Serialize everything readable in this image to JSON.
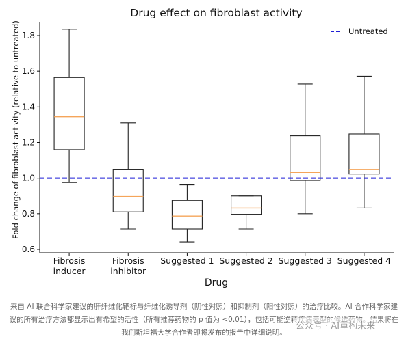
{
  "chart_data": {
    "type": "box",
    "title": "Drug effect on fibroblast activity",
    "xlabel": "Drug",
    "ylabel": "Fold change of fibroblast activity (relative to untreated)",
    "ylim": [
      0.6,
      1.9
    ],
    "yticks": [
      "0.6",
      "0.8",
      "1.0",
      "1.2",
      "1.4",
      "1.6",
      "1.8"
    ],
    "categories": [
      [
        "Fibrosis",
        "inducer"
      ],
      [
        "Fibrosis",
        "inhibitor"
      ],
      [
        "Suggested 1"
      ],
      [
        "Suggested 2"
      ],
      [
        "Suggested 3"
      ],
      [
        "Suggested 4"
      ]
    ],
    "boxes": [
      {
        "whislo": 0.975,
        "q1": 1.16,
        "med": 1.345,
        "q3": 1.565,
        "whishi": 1.835
      },
      {
        "whislo": 0.715,
        "q1": 0.81,
        "med": 0.897,
        "q3": 1.047,
        "whishi": 1.31
      },
      {
        "whislo": 0.642,
        "q1": 0.715,
        "med": 0.787,
        "q3": 0.875,
        "whishi": 0.962
      },
      {
        "whislo": 0.715,
        "q1": 0.797,
        "med": 0.832,
        "q3": 0.9,
        "whishi": 0.9
      },
      {
        "whislo": 0.8,
        "q1": 0.987,
        "med": 1.032,
        "q3": 1.238,
        "whishi": 1.528
      },
      {
        "whislo": 0.832,
        "q1": 1.023,
        "med": 1.048,
        "q3": 1.248,
        "whishi": 1.572
      }
    ],
    "reference_line": {
      "y": 1.0,
      "label": "Untreated",
      "color": "#1f1fd6",
      "style": "dashed"
    },
    "legend": {
      "position": "top-right",
      "entries": [
        "Untreated"
      ]
    },
    "median_color": "#f5a55a",
    "grid": false
  },
  "caption": "来自 AI 联合科学家建议的肝纤维化靶标与纤维化诱导剂（阴性对照）和抑制剂（阳性对照）的治疗比较。AI 合作科学家建议的所有治疗方法都显示出有希望的活性（所有推荐药物的 p 值为 <0.01），包括可能逆转疾病表型的候选药物。结果将在我们斯坦福大学合作者即将发布的报告中详细说明。",
  "watermark": "公众号 · AI重构未来"
}
